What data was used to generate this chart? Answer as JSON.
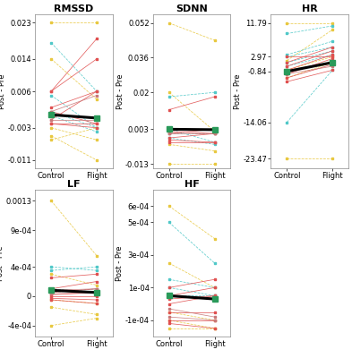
{
  "title_fontsize": 8,
  "axis_label_fontsize": 6,
  "tick_fontsize": 6,
  "panels": [
    {
      "title": "RMSSD",
      "ylabel": "Post - Pre",
      "yticks": [
        -0.011,
        -0.003,
        0.006,
        0.014,
        0.023
      ],
      "ytick_labels": [
        "-0.011",
        "-0.003",
        "0.006",
        "0.014",
        "0.023"
      ],
      "ylim": [
        -0.013,
        0.025
      ],
      "mean_control": 0.0002,
      "mean_flight": -0.0006,
      "individual_dashed": [
        {
          "color": "#e8c840",
          "c": 0.023,
          "f": 0.023
        },
        {
          "color": "#e8c840",
          "c": 0.014,
          "f": 0.004
        },
        {
          "color": "#50c8c8",
          "c": 0.018,
          "f": 0.006
        },
        {
          "color": "#50c8c8",
          "c": 0.005,
          "f": -0.003
        },
        {
          "color": "#50c8c8",
          "c": 0.0,
          "f": -0.004
        },
        {
          "color": "#e8c840",
          "c": -0.003,
          "f": -0.006
        },
        {
          "color": "#e8c840",
          "c": -0.005,
          "f": -0.011
        },
        {
          "color": "#e8c840",
          "c": -0.006,
          "f": -0.003
        },
        {
          "color": "#50c8c8",
          "c": 0.001,
          "f": -0.003
        }
      ],
      "individual_solid": [
        {
          "color": "#e05050",
          "c": 0.006,
          "f": 0.019
        },
        {
          "color": "#e05050",
          "c": 0.006,
          "f": 0.014
        },
        {
          "color": "#e05050",
          "c": 0.002,
          "f": 0.006
        },
        {
          "color": "#e05050",
          "c": -0.001,
          "f": 0.006
        },
        {
          "color": "#e05050",
          "c": 0.001,
          "f": -0.002
        },
        {
          "color": "#e05050",
          "c": -0.002,
          "f": -0.002
        },
        {
          "color": "#e05050",
          "c": -0.002,
          "f": -0.003
        },
        {
          "color": "#c87878",
          "c": 0.001,
          "f": 0.005
        },
        {
          "color": "#c87878",
          "c": -0.001,
          "f": -0.001
        }
      ],
      "mean_color": "black",
      "dot_color": "#2a9a5a"
    },
    {
      "title": "SDNN",
      "ylabel": "Post - Pre",
      "yticks": [
        -0.013,
        0.003,
        0.02,
        0.036,
        0.052
      ],
      "ytick_labels": [
        "-0.013",
        "0.003",
        "0.02",
        "0.036",
        "0.052"
      ],
      "ylim": [
        -0.015,
        0.056
      ],
      "mean_control": 0.003,
      "mean_flight": 0.0028,
      "individual_dashed": [
        {
          "color": "#e8c840",
          "c": 0.052,
          "f": 0.044
        },
        {
          "color": "#e8c840",
          "c": 0.02,
          "f": 0.002
        },
        {
          "color": "#50c8c8",
          "c": 0.018,
          "f": 0.02
        },
        {
          "color": "#50c8c8",
          "c": 0.003,
          "f": -0.003
        },
        {
          "color": "#50c8c8",
          "c": -0.001,
          "f": -0.004
        },
        {
          "color": "#e8c840",
          "c": -0.004,
          "f": -0.007
        },
        {
          "color": "#e8c840",
          "c": -0.013,
          "f": -0.013
        },
        {
          "color": "#50c8c8",
          "c": 0.001,
          "f": 0.001
        }
      ],
      "individual_solid": [
        {
          "color": "#e05050",
          "c": 0.012,
          "f": 0.018
        },
        {
          "color": "#e05050",
          "c": 0.003,
          "f": 0.003
        },
        {
          "color": "#e05050",
          "c": 0.002,
          "f": 0.001
        },
        {
          "color": "#e05050",
          "c": 0.001,
          "f": 0.003
        },
        {
          "color": "#e05050",
          "c": -0.001,
          "f": 0.001
        },
        {
          "color": "#e05050",
          "c": -0.002,
          "f": -0.003
        },
        {
          "color": "#e05050",
          "c": -0.003,
          "f": -0.003
        },
        {
          "color": "#c87878",
          "c": 0.003,
          "f": 0.003
        },
        {
          "color": "#c87878",
          "c": 0.001,
          "f": 0.001
        }
      ],
      "mean_color": "black",
      "dot_color": "#2a9a5a"
    },
    {
      "title": "HR",
      "ylabel": "Post - Pre",
      "yticks": [
        -23.47,
        -14.06,
        -0.84,
        2.97,
        11.79
      ],
      "ytick_labels": [
        "-23.47",
        "-14.06",
        "-0.84",
        "2.97",
        "11.79"
      ],
      "ylim": [
        -26,
        14
      ],
      "mean_control": -0.84,
      "mean_flight": 1.5,
      "individual_dashed": [
        {
          "color": "#e8c840",
          "c": 11.79,
          "f": 11.79
        },
        {
          "color": "#e8c840",
          "c": 2.0,
          "f": 10.0
        },
        {
          "color": "#50c8c8",
          "c": 9.0,
          "f": 11.0
        },
        {
          "color": "#50c8c8",
          "c": 3.5,
          "f": 7.0
        },
        {
          "color": "#50c8c8",
          "c": 2.97,
          "f": 5.5
        },
        {
          "color": "#50c8c8",
          "c": 1.5,
          "f": 4.5
        },
        {
          "color": "#50c8c8",
          "c": 0.5,
          "f": 3.5
        },
        {
          "color": "#e8c840",
          "c": -0.5,
          "f": 3.0
        },
        {
          "color": "#e8c840",
          "c": -2.5,
          "f": 1.5
        },
        {
          "color": "#50c8c8",
          "c": -14.06,
          "f": -0.5
        },
        {
          "color": "#e8c840",
          "c": -23.47,
          "f": -23.47
        }
      ],
      "individual_solid": [
        {
          "color": "#e05050",
          "c": 2.97,
          "f": 2.97
        },
        {
          "color": "#e05050",
          "c": 1.5,
          "f": 5.5
        },
        {
          "color": "#e05050",
          "c": 0.5,
          "f": 4.5
        },
        {
          "color": "#e05050",
          "c": -0.5,
          "f": 3.5
        },
        {
          "color": "#e05050",
          "c": -1.5,
          "f": 2.5
        },
        {
          "color": "#e05050",
          "c": -2.5,
          "f": 1.0
        },
        {
          "color": "#e05050",
          "c": -3.5,
          "f": -0.5
        },
        {
          "color": "#c87878",
          "c": -0.5,
          "f": 1.5
        },
        {
          "color": "#c87878",
          "c": -1.5,
          "f": 0.5
        }
      ],
      "mean_color": "black",
      "dot_color": "#2a9a5a"
    },
    {
      "title": "LF",
      "ylabel": "Post - Pre",
      "yticks": [
        -0.0004,
        0,
        0.0004,
        0.0009,
        0.0013
      ],
      "ytick_labels": [
        "-4e-04",
        "0",
        "4e-04",
        "9e-04",
        "0.0013"
      ],
      "ylim": [
        -0.00055,
        0.00145
      ],
      "mean_control": 8e-05,
      "mean_flight": 5e-05,
      "individual_dashed": [
        {
          "color": "#e8c840",
          "c": 0.0013,
          "f": 0.00055
        },
        {
          "color": "#50c8c8",
          "c": 0.0004,
          "f": 0.00035
        },
        {
          "color": "#50c8c8",
          "c": 0.00035,
          "f": 0.0004
        },
        {
          "color": "#e8c840",
          "c": 0.0003,
          "f": 0.00015
        },
        {
          "color": "#50c8c8",
          "c": 0.0001,
          "f": 5e-05
        },
        {
          "color": "#50c8c8",
          "c": 5e-05,
          "f": 0.0001
        },
        {
          "color": "#e8c840",
          "c": -5e-05,
          "f": -0.0001
        },
        {
          "color": "#e8c840",
          "c": -0.00015,
          "f": -0.00025
        },
        {
          "color": "#e8c840",
          "c": -0.0004,
          "f": -0.0003
        }
      ],
      "individual_solid": [
        {
          "color": "#e05050",
          "c": 0.00025,
          "f": 0.0003
        },
        {
          "color": "#e05050",
          "c": 0.0001,
          "f": 0.0002
        },
        {
          "color": "#e05050",
          "c": 5e-05,
          "f": 0.0001
        },
        {
          "color": "#e05050",
          "c": 2e-05,
          "f": 5e-05
        },
        {
          "color": "#e05050",
          "c": 0,
          "f": 0
        },
        {
          "color": "#e05050",
          "c": -3e-05,
          "f": -5e-05
        },
        {
          "color": "#e05050",
          "c": -5e-05,
          "f": -0.0001
        },
        {
          "color": "#c87878",
          "c": 8e-05,
          "f": 0.0001
        },
        {
          "color": "#c87878",
          "c": 3e-05,
          "f": 5e-05
        }
      ],
      "mean_color": "black",
      "dot_color": "#2a9a5a"
    },
    {
      "title": "HF",
      "ylabel": "Post - Pre",
      "yticks": [
        -0.0001,
        0.0001,
        0.0003,
        0.0005,
        0.0006
      ],
      "ytick_labels": [
        "-1e-04",
        "1e-04",
        "3e-04",
        "5e-04",
        "6e-04"
      ],
      "ylim": [
        -0.0002,
        0.0007
      ],
      "mean_control": 5e-05,
      "mean_flight": 3e-05,
      "individual_dashed": [
        {
          "color": "#e8c840",
          "c": 0.0006,
          "f": 0.0004
        },
        {
          "color": "#50c8c8",
          "c": 0.0005,
          "f": 0.00025
        },
        {
          "color": "#e8c840",
          "c": 0.00025,
          "f": 0.0001
        },
        {
          "color": "#50c8c8",
          "c": 0.00015,
          "f": 0.0001
        },
        {
          "color": "#50c8c8",
          "c": 0.0001,
          "f": 5e-05
        },
        {
          "color": "#e8c840",
          "c": -5e-05,
          "f": -0.0001
        },
        {
          "color": "#e8c840",
          "c": -0.0001,
          "f": -0.00015
        },
        {
          "color": "#e8c840",
          "c": -0.00015,
          "f": -0.00015
        },
        {
          "color": "#50c8c8",
          "c": 5e-05,
          "f": 5e-05
        }
      ],
      "individual_solid": [
        {
          "color": "#e05050",
          "c": 0.0001,
          "f": 0.00015
        },
        {
          "color": "#e05050",
          "c": 5e-05,
          "f": 0.0001
        },
        {
          "color": "#e05050",
          "c": 3e-05,
          "f": 5e-05
        },
        {
          "color": "#e05050",
          "c": 0,
          "f": 5e-05
        },
        {
          "color": "#e05050",
          "c": -5e-05,
          "f": -5e-05
        },
        {
          "color": "#e05050",
          "c": -0.0001,
          "f": -0.0001
        },
        {
          "color": "#e05050",
          "c": -0.00012,
          "f": -0.00015
        },
        {
          "color": "#c87878",
          "c": -3e-05,
          "f": -8e-05
        },
        {
          "color": "#c87878",
          "c": -8e-05,
          "f": -0.0001
        }
      ],
      "mean_color": "black",
      "dot_color": "#2a9a5a"
    }
  ]
}
